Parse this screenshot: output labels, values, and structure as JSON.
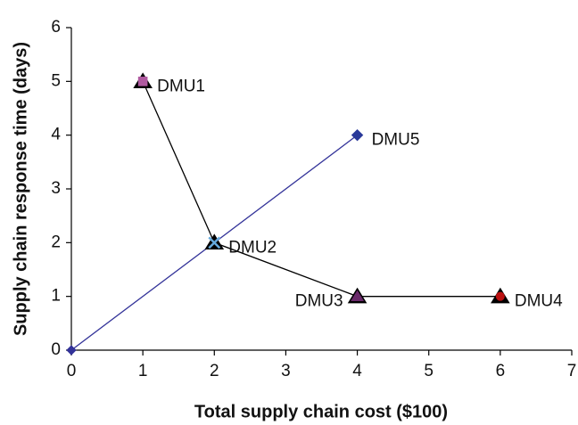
{
  "chart_data": {
    "type": "line",
    "x_label": "Total supply chain cost ($100)",
    "y_label": "Supply chain response time (days)",
    "xlim": [
      0,
      7
    ],
    "xticks": [
      0,
      1,
      2,
      3,
      4,
      5,
      6,
      7
    ],
    "ylim": [
      0,
      6
    ],
    "yticks": [
      0,
      1,
      2,
      3,
      4,
      5,
      6
    ],
    "grid": false,
    "series": [
      {
        "color": "#333399",
        "marker": "diamond",
        "x": [
          0,
          4
        ],
        "values": [
          0,
          4
        ]
      },
      {
        "color": "#000000",
        "marker": "triangle",
        "x": [
          1,
          2,
          4,
          6
        ],
        "values": [
          5,
          2,
          1,
          1
        ]
      }
    ],
    "points": [
      {
        "label": "DMU1",
        "x": 1,
        "y": 5,
        "color": "#b05aa0",
        "marker": "square"
      },
      {
        "label": "DMU2",
        "x": 2,
        "y": 2,
        "color": "#66aadd",
        "marker": "cross"
      },
      {
        "label": "DMU3",
        "x": 4,
        "y": 1,
        "color": "#6a2a6a",
        "marker": "triangle"
      },
      {
        "label": "DMU4",
        "x": 6,
        "y": 1,
        "color": "#bb1111",
        "marker": "circle"
      },
      {
        "label": "DMU5",
        "x": 4,
        "y": 4,
        "color": "#2a3a9a",
        "marker": "diamond"
      }
    ]
  }
}
